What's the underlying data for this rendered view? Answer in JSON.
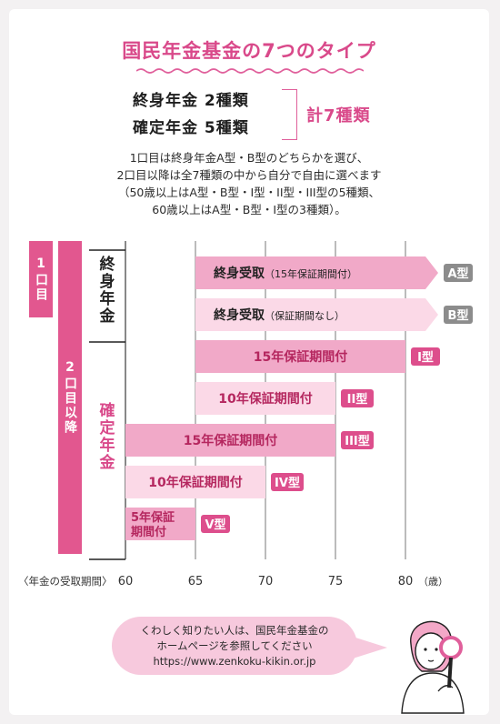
{
  "title": "国民年金基金の7つのタイプ",
  "summary": {
    "line1": "終身年金 2種類",
    "line2": "確定年金 5種類",
    "total": "計7種類"
  },
  "notes": [
    "1口目は終身年金A型・B型のどちらかを選び、",
    "2口目以降は全7種類の中から自分で自由に選べます",
    "（50歳以上はA型・B型・I型・II型・III型の5種類、",
    "60歳以上はA型・B型・I型の3種類）。"
  ],
  "left_bands": {
    "first": "1口目",
    "second": "2口目以降"
  },
  "categories": {
    "lifetime": "終身年金",
    "fixed": "確定年金"
  },
  "chart_data": {
    "type": "bar",
    "x_label": "〈年金の受取期間〉",
    "x_unit": "（歳）",
    "x_ticks": [
      60,
      65,
      70,
      75,
      80
    ],
    "bars": [
      {
        "label_main": "終身受取",
        "label_sub": "（15年保証期間付）",
        "start": 65,
        "end": 80,
        "open_ended": true,
        "type": "A型",
        "color": "#f1a9c8",
        "tag_color": "#8c8c8c"
      },
      {
        "label_main": "終身受取",
        "label_sub": "（保証期間なし）",
        "start": 65,
        "end": 80,
        "open_ended": true,
        "type": "B型",
        "color": "#fbd9e7",
        "tag_color": "#8c8c8c"
      },
      {
        "label_main": "15年保証期間付",
        "label_sub": "",
        "start": 65,
        "end": 80,
        "open_ended": false,
        "type": "I型",
        "color": "#f1a9c8",
        "tag_color": "#dd4e8c"
      },
      {
        "label_main": "10年保証期間付",
        "label_sub": "",
        "start": 65,
        "end": 75,
        "open_ended": false,
        "type": "II型",
        "color": "#fbd9e7",
        "tag_color": "#dd4e8c"
      },
      {
        "label_main": "15年保証期間付",
        "label_sub": "",
        "start": 60,
        "end": 75,
        "open_ended": false,
        "type": "III型",
        "color": "#f1a9c8",
        "tag_color": "#dd4e8c"
      },
      {
        "label_main": "10年保証期間付",
        "label_sub": "",
        "start": 60,
        "end": 70,
        "open_ended": false,
        "type": "IV型",
        "color": "#fbd9e7",
        "tag_color": "#dd4e8c"
      },
      {
        "label_main": "5年保証",
        "label_sub": "期間付",
        "start": 60,
        "end": 65,
        "open_ended": false,
        "type": "V型",
        "color": "#f1a9c8",
        "tag_color": "#dd4e8c"
      }
    ]
  },
  "bubble": {
    "line1": "くわしく知りたい人は、国民年金基金の",
    "line2": "ホームページを参照してください",
    "url": "https://www.zenkoku-kikin.or.jp"
  }
}
